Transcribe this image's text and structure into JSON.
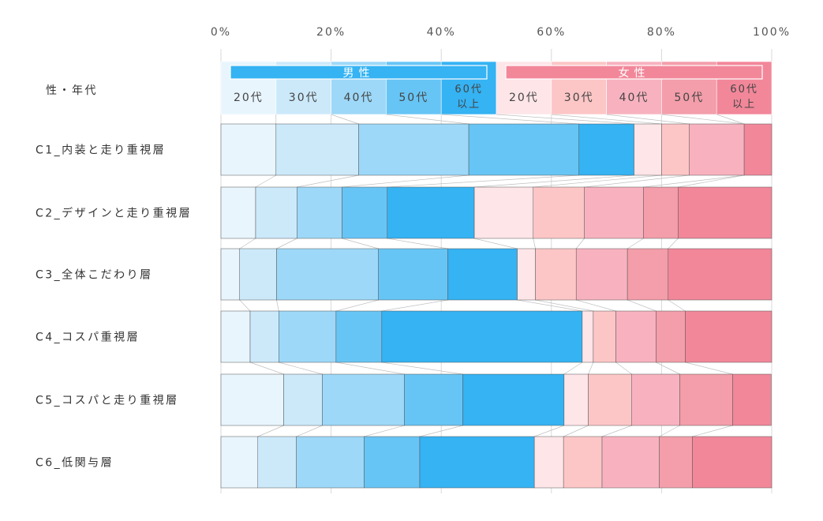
{
  "chart_data": {
    "type": "bar",
    "stacked": "100%",
    "orientation": "horizontal",
    "x_ticks": [
      "0%",
      "20%",
      "40%",
      "60%",
      "80%",
      "100%"
    ],
    "xlim": [
      0,
      100
    ],
    "header": {
      "label": "性・年代",
      "groups": [
        {
          "name": "男性",
          "color": "#35b3f3",
          "segments": [
            "20代",
            "30代",
            "40代",
            "50代",
            "60代\n以上"
          ]
        },
        {
          "name": "女性",
          "color": "#f2879a",
          "segments": [
            "20代",
            "30代",
            "40代",
            "50代",
            "60代\n以上"
          ]
        }
      ]
    },
    "series": [
      {
        "name": "男性 20代",
        "color": "#e8f5fd"
      },
      {
        "name": "男性 30代",
        "color": "#cce9fa"
      },
      {
        "name": "男性 40代",
        "color": "#9dd8f8"
      },
      {
        "name": "男性 50代",
        "color": "#67c5f5"
      },
      {
        "name": "男性 60代以上",
        "color": "#35b3f3"
      },
      {
        "name": "女性 20代",
        "color": "#fde5e8"
      },
      {
        "name": "女性 30代",
        "color": "#fdc6c6"
      },
      {
        "name": "女性 40代",
        "color": "#f8b2bf"
      },
      {
        "name": "女性 50代",
        "color": "#f39eaa"
      },
      {
        "name": "女性 60代以上",
        "color": "#f2879a"
      }
    ],
    "header_values": [
      10,
      10,
      10,
      10,
      10,
      10,
      10,
      10,
      10,
      10
    ],
    "rows": [
      {
        "label": "C1_内装と走り重視層",
        "values": [
          10.0,
          15.0,
          20.0,
          20.0,
          10.0,
          5.0,
          5.0,
          10.0,
          0.0,
          5.0
        ]
      },
      {
        "label": "C2_デザインと走り重視層",
        "values": [
          6.3,
          7.5,
          8.2,
          8.2,
          15.8,
          10.7,
          9.3,
          10.7,
          6.3,
          17.0
        ]
      },
      {
        "label": "C3_全体こだわり層",
        "values": [
          3.4,
          6.7,
          18.5,
          12.6,
          12.6,
          3.3,
          7.4,
          9.3,
          7.4,
          18.8
        ]
      },
      {
        "label": "C4_コスパ重視層",
        "values": [
          5.3,
          5.2,
          10.4,
          8.3,
          36.4,
          2.0,
          4.1,
          7.3,
          5.3,
          15.7
        ]
      },
      {
        "label": "C5_コスパと走り重視層",
        "values": [
          11.4,
          7.0,
          14.9,
          10.6,
          18.4,
          4.4,
          7.9,
          8.7,
          9.6,
          7.0
        ]
      },
      {
        "label": "C6_低関与層",
        "values": [
          6.7,
          7.0,
          12.3,
          10.1,
          20.8,
          5.3,
          7.0,
          10.4,
          6.0,
          14.4
        ]
      }
    ]
  }
}
